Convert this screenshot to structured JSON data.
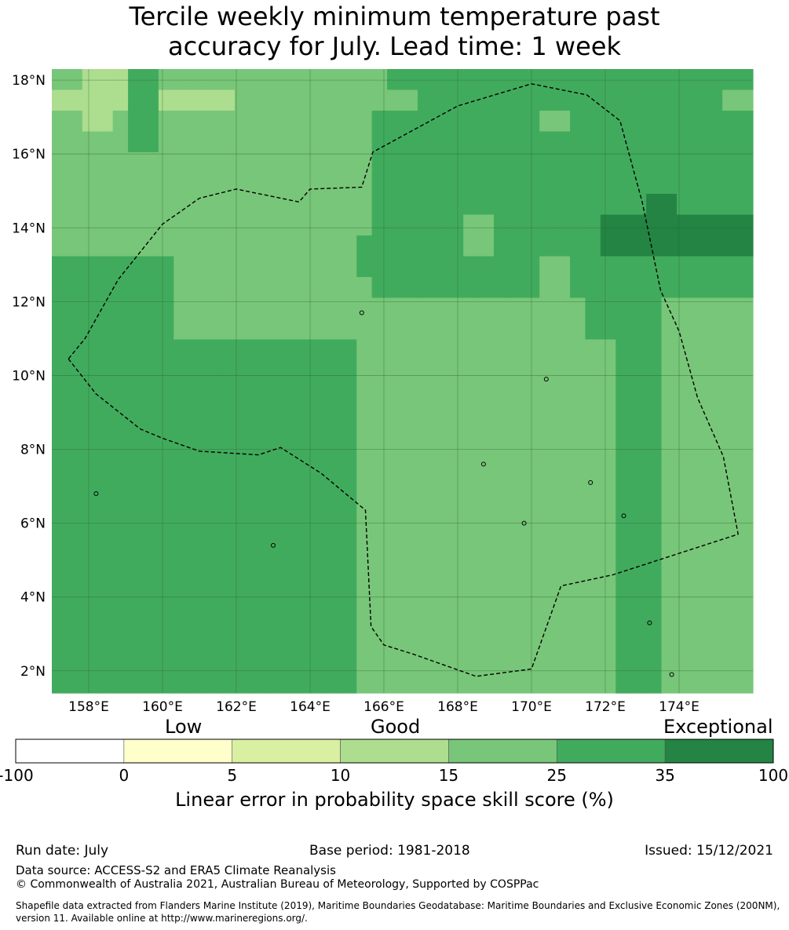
{
  "title_line1": "Tercile weekly minimum temperature past",
  "title_line2": "accuracy for July. Lead time: 1 week",
  "map": {
    "lon_range": [
      157.0,
      176.0
    ],
    "lat_range": [
      1.4,
      18.3
    ],
    "lat_ticks": [
      {
        "value": 2,
        "label": "2°N"
      },
      {
        "value": 4,
        "label": "4°N"
      },
      {
        "value": 6,
        "label": "6°N"
      },
      {
        "value": 8,
        "label": "8°N"
      },
      {
        "value": 10,
        "label": "10°N"
      },
      {
        "value": 12,
        "label": "12°N"
      },
      {
        "value": 14,
        "label": "14°N"
      },
      {
        "value": 16,
        "label": "16°N"
      },
      {
        "value": 18,
        "label": "18°N"
      }
    ],
    "lon_ticks": [
      {
        "value": 158,
        "label": "158°E"
      },
      {
        "value": 160,
        "label": "160°E"
      },
      {
        "value": 162,
        "label": "162°E"
      },
      {
        "value": 164,
        "label": "164°E"
      },
      {
        "value": 166,
        "label": "166°E"
      },
      {
        "value": 168,
        "label": "168°E"
      },
      {
        "value": 170,
        "label": "170°E"
      },
      {
        "value": 172,
        "label": "172°E"
      },
      {
        "value": 174,
        "label": "174°E"
      }
    ],
    "grid_lines": true,
    "eez_boundary_lonlat": [
      [
        157.45,
        10.45
      ],
      [
        158.2,
        9.5
      ],
      [
        159.4,
        8.55
      ],
      [
        160.0,
        8.3
      ],
      [
        161.0,
        7.95
      ],
      [
        162.6,
        7.85
      ],
      [
        163.2,
        8.05
      ],
      [
        164.3,
        7.35
      ],
      [
        165.5,
        6.35
      ],
      [
        165.65,
        3.2
      ],
      [
        166.0,
        2.7
      ],
      [
        166.8,
        2.45
      ],
      [
        168.5,
        1.85
      ],
      [
        170.0,
        2.05
      ],
      [
        170.8,
        4.3
      ],
      [
        172.2,
        4.6
      ],
      [
        175.6,
        5.7
      ],
      [
        175.2,
        7.8
      ],
      [
        174.5,
        9.4
      ],
      [
        174.0,
        11.2
      ],
      [
        173.5,
        12.3
      ],
      [
        173.0,
        14.7
      ],
      [
        172.4,
        16.9
      ],
      [
        171.5,
        17.6
      ],
      [
        170.0,
        17.9
      ],
      [
        168.0,
        17.3
      ],
      [
        165.7,
        16.05
      ],
      [
        165.4,
        15.1
      ],
      [
        164.0,
        15.05
      ],
      [
        163.7,
        14.7
      ],
      [
        162.0,
        15.05
      ],
      [
        161.0,
        14.8
      ],
      [
        160.0,
        14.1
      ],
      [
        158.8,
        12.6
      ],
      [
        157.9,
        11.0
      ],
      [
        157.45,
        10.45
      ]
    ],
    "skill_grid_lat_from_north": [
      [
        4,
        4,
        3,
        3,
        3,
        5,
        5,
        4,
        4,
        4,
        4,
        4,
        4,
        4,
        4,
        4,
        4,
        4,
        4,
        4,
        4,
        4,
        5,
        5,
        5,
        5,
        5,
        5,
        5,
        5,
        5,
        5,
        5,
        5,
        5,
        5,
        5,
        5,
        5,
        5,
        5,
        5,
        5,
        5,
        5,
        5
      ],
      [
        3,
        3,
        3,
        3,
        3,
        5,
        5,
        3,
        3,
        3,
        3,
        3,
        4,
        4,
        4,
        4,
        4,
        4,
        4,
        4,
        4,
        4,
        4,
        4,
        5,
        5,
        5,
        5,
        5,
        5,
        5,
        5,
        5,
        5,
        5,
        5,
        5,
        5,
        5,
        5,
        5,
        5,
        5,
        5,
        4,
        4
      ],
      [
        4,
        4,
        3,
        3,
        4,
        5,
        5,
        4,
        4,
        4,
        4,
        4,
        4,
        4,
        4,
        4,
        4,
        4,
        4,
        4,
        4,
        5,
        5,
        5,
        5,
        5,
        5,
        5,
        5,
        5,
        5,
        5,
        4,
        4,
        5,
        5,
        5,
        5,
        5,
        5,
        5,
        5,
        5,
        5,
        5,
        5
      ],
      [
        4,
        4,
        4,
        4,
        4,
        5,
        5,
        4,
        4,
        4,
        4,
        4,
        4,
        4,
        4,
        4,
        4,
        4,
        4,
        4,
        4,
        5,
        5,
        5,
        5,
        5,
        5,
        5,
        5,
        5,
        5,
        5,
        5,
        5,
        5,
        5,
        5,
        5,
        5,
        5,
        5,
        5,
        5,
        5,
        5,
        5
      ],
      [
        4,
        4,
        4,
        4,
        4,
        4,
        4,
        4,
        4,
        4,
        4,
        4,
        4,
        4,
        4,
        4,
        4,
        4,
        4,
        4,
        4,
        5,
        5,
        5,
        5,
        5,
        5,
        5,
        5,
        5,
        5,
        5,
        5,
        5,
        5,
        5,
        5,
        5,
        5,
        5,
        5,
        5,
        5,
        5,
        5,
        5
      ],
      [
        4,
        4,
        4,
        4,
        4,
        4,
        4,
        4,
        4,
        4,
        4,
        4,
        4,
        4,
        4,
        4,
        4,
        4,
        4,
        4,
        4,
        5,
        5,
        5,
        5,
        5,
        5,
        5,
        5,
        5,
        5,
        5,
        5,
        5,
        5,
        5,
        5,
        5,
        5,
        5,
        5,
        5,
        5,
        5,
        5,
        5
      ],
      [
        4,
        4,
        4,
        4,
        4,
        4,
        4,
        4,
        4,
        4,
        4,
        4,
        4,
        4,
        4,
        4,
        4,
        4,
        4,
        4,
        4,
        5,
        5,
        5,
        5,
        5,
        5,
        5,
        5,
        5,
        5,
        5,
        5,
        5,
        5,
        5,
        5,
        5,
        5,
        6,
        6,
        5,
        5,
        5,
        5,
        5
      ],
      [
        4,
        4,
        4,
        4,
        4,
        4,
        4,
        4,
        4,
        4,
        4,
        4,
        4,
        4,
        4,
        4,
        4,
        4,
        4,
        4,
        4,
        5,
        5,
        5,
        5,
        5,
        5,
        4,
        4,
        5,
        5,
        5,
        5,
        5,
        5,
        5,
        6,
        6,
        6,
        6,
        6,
        6,
        6,
        6,
        6,
        6
      ],
      [
        4,
        4,
        4,
        4,
        4,
        4,
        4,
        4,
        4,
        4,
        4,
        4,
        4,
        4,
        4,
        4,
        4,
        4,
        4,
        4,
        5,
        5,
        5,
        5,
        5,
        5,
        5,
        4,
        4,
        5,
        5,
        5,
        5,
        5,
        5,
        5,
        6,
        6,
        6,
        6,
        6,
        6,
        6,
        6,
        6,
        6
      ],
      [
        5,
        5,
        5,
        5,
        5,
        5,
        5,
        5,
        4,
        4,
        4,
        4,
        4,
        4,
        4,
        4,
        4,
        4,
        4,
        4,
        5,
        5,
        5,
        5,
        5,
        5,
        5,
        5,
        5,
        5,
        5,
        5,
        4,
        4,
        5,
        5,
        5,
        5,
        5,
        5,
        5,
        5,
        5,
        5,
        5,
        5
      ],
      [
        5,
        5,
        5,
        5,
        5,
        5,
        5,
        5,
        4,
        4,
        4,
        4,
        4,
        4,
        4,
        4,
        4,
        4,
        4,
        4,
        4,
        5,
        5,
        5,
        5,
        5,
        5,
        5,
        5,
        5,
        5,
        5,
        4,
        4,
        5,
        5,
        5,
        5,
        5,
        5,
        5,
        5,
        5,
        5,
        5,
        5
      ],
      [
        5,
        5,
        5,
        5,
        5,
        5,
        5,
        5,
        4,
        4,
        4,
        4,
        4,
        4,
        4,
        4,
        4,
        4,
        4,
        4,
        4,
        4,
        4,
        4,
        4,
        4,
        4,
        4,
        4,
        4,
        4,
        4,
        4,
        4,
        4,
        5,
        5,
        5,
        5,
        5,
        4,
        4,
        4,
        4,
        4,
        4
      ],
      [
        5,
        5,
        5,
        5,
        5,
        5,
        5,
        5,
        4,
        4,
        4,
        4,
        4,
        4,
        4,
        4,
        4,
        4,
        4,
        4,
        4,
        4,
        4,
        4,
        4,
        4,
        4,
        4,
        4,
        4,
        4,
        4,
        4,
        4,
        4,
        5,
        5,
        5,
        5,
        5,
        4,
        4,
        4,
        4,
        4,
        4
      ],
      [
        5,
        5,
        5,
        5,
        5,
        5,
        5,
        5,
        5,
        5,
        5,
        5,
        5,
        5,
        5,
        5,
        5,
        5,
        5,
        5,
        4,
        4,
        4,
        4,
        4,
        4,
        4,
        4,
        4,
        4,
        4,
        4,
        4,
        4,
        4,
        4,
        4,
        5,
        5,
        5,
        4,
        4,
        4,
        4,
        4,
        4
      ],
      [
        5,
        5,
        5,
        5,
        5,
        5,
        5,
        5,
        5,
        5,
        5,
        5,
        5,
        5,
        5,
        5,
        5,
        5,
        5,
        5,
        4,
        4,
        4,
        4,
        4,
        4,
        4,
        4,
        4,
        4,
        4,
        4,
        4,
        4,
        4,
        4,
        4,
        5,
        5,
        5,
        4,
        4,
        4,
        4,
        4,
        4
      ],
      [
        5,
        5,
        5,
        5,
        5,
        5,
        5,
        5,
        5,
        5,
        5,
        5,
        5,
        5,
        5,
        5,
        5,
        5,
        5,
        5,
        4,
        4,
        4,
        4,
        4,
        4,
        4,
        4,
        4,
        4,
        4,
        4,
        4,
        4,
        4,
        4,
        4,
        5,
        5,
        5,
        4,
        4,
        4,
        4,
        4,
        4
      ],
      [
        5,
        5,
        5,
        5,
        5,
        5,
        5,
        5,
        5,
        5,
        5,
        5,
        5,
        5,
        5,
        5,
        5,
        5,
        5,
        5,
        4,
        4,
        4,
        4,
        4,
        4,
        4,
        4,
        4,
        4,
        4,
        4,
        4,
        4,
        4,
        4,
        4,
        5,
        5,
        5,
        4,
        4,
        4,
        4,
        4,
        4
      ],
      [
        5,
        5,
        5,
        5,
        5,
        5,
        5,
        5,
        5,
        5,
        5,
        5,
        5,
        5,
        5,
        5,
        5,
        5,
        5,
        5,
        4,
        4,
        4,
        4,
        4,
        4,
        4,
        4,
        4,
        4,
        4,
        4,
        4,
        4,
        4,
        4,
        4,
        5,
        5,
        5,
        4,
        4,
        4,
        4,
        4,
        4
      ],
      [
        5,
        5,
        5,
        5,
        5,
        5,
        5,
        5,
        5,
        5,
        5,
        5,
        5,
        5,
        5,
        5,
        5,
        5,
        5,
        5,
        4,
        4,
        4,
        4,
        4,
        4,
        4,
        4,
        4,
        4,
        4,
        4,
        4,
        4,
        4,
        4,
        4,
        5,
        5,
        5,
        4,
        4,
        4,
        4,
        4,
        4
      ],
      [
        5,
        5,
        5,
        5,
        5,
        5,
        5,
        5,
        5,
        5,
        5,
        5,
        5,
        5,
        5,
        5,
        5,
        5,
        5,
        5,
        4,
        4,
        4,
        4,
        4,
        4,
        4,
        4,
        4,
        4,
        4,
        4,
        4,
        4,
        4,
        4,
        4,
        5,
        5,
        5,
        4,
        4,
        4,
        4,
        4,
        4
      ],
      [
        5,
        5,
        5,
        5,
        5,
        5,
        5,
        5,
        5,
        5,
        5,
        5,
        5,
        5,
        5,
        5,
        5,
        5,
        5,
        5,
        4,
        4,
        4,
        4,
        4,
        4,
        4,
        4,
        4,
        4,
        4,
        4,
        4,
        4,
        4,
        4,
        4,
        5,
        5,
        5,
        4,
        4,
        4,
        4,
        4,
        4
      ],
      [
        5,
        5,
        5,
        5,
        5,
        5,
        5,
        5,
        5,
        5,
        5,
        5,
        5,
        5,
        5,
        5,
        5,
        5,
        5,
        5,
        4,
        4,
        4,
        4,
        4,
        4,
        4,
        4,
        4,
        4,
        4,
        4,
        4,
        4,
        4,
        4,
        4,
        5,
        5,
        5,
        4,
        4,
        4,
        4,
        4,
        4
      ],
      [
        5,
        5,
        5,
        5,
        5,
        5,
        5,
        5,
        5,
        5,
        5,
        5,
        5,
        5,
        5,
        5,
        5,
        5,
        5,
        5,
        4,
        4,
        4,
        4,
        4,
        4,
        4,
        4,
        4,
        4,
        4,
        4,
        4,
        4,
        4,
        4,
        4,
        5,
        5,
        5,
        4,
        4,
        4,
        4,
        4,
        4
      ],
      [
        5,
        5,
        5,
        5,
        5,
        5,
        5,
        5,
        5,
        5,
        5,
        5,
        5,
        5,
        5,
        5,
        5,
        5,
        5,
        5,
        4,
        4,
        4,
        4,
        4,
        4,
        4,
        4,
        4,
        4,
        4,
        4,
        4,
        4,
        4,
        4,
        4,
        5,
        5,
        5,
        4,
        4,
        4,
        4,
        4,
        4
      ],
      [
        5,
        5,
        5,
        5,
        5,
        5,
        5,
        5,
        5,
        5,
        5,
        5,
        5,
        5,
        5,
        5,
        5,
        5,
        5,
        5,
        4,
        4,
        4,
        4,
        4,
        4,
        4,
        4,
        4,
        4,
        4,
        4,
        4,
        4,
        4,
        4,
        4,
        5,
        5,
        5,
        4,
        4,
        4,
        4,
        4,
        4
      ],
      [
        5,
        5,
        5,
        5,
        5,
        5,
        5,
        5,
        5,
        5,
        5,
        5,
        5,
        5,
        5,
        5,
        5,
        5,
        5,
        5,
        4,
        4,
        4,
        4,
        4,
        4,
        4,
        4,
        4,
        4,
        4,
        4,
        4,
        4,
        4,
        4,
        4,
        5,
        5,
        5,
        4,
        4,
        4,
        4,
        4,
        4
      ],
      [
        5,
        5,
        5,
        5,
        5,
        5,
        5,
        5,
        5,
        5,
        5,
        5,
        5,
        5,
        5,
        5,
        5,
        5,
        5,
        5,
        4,
        4,
        4,
        4,
        4,
        4,
        4,
        4,
        4,
        4,
        4,
        4,
        4,
        4,
        4,
        4,
        4,
        5,
        5,
        5,
        4,
        4,
        4,
        4,
        4,
        4
      ],
      [
        5,
        5,
        5,
        5,
        5,
        5,
        5,
        5,
        5,
        5,
        5,
        5,
        5,
        5,
        5,
        5,
        5,
        5,
        5,
        5,
        4,
        4,
        4,
        4,
        4,
        4,
        4,
        4,
        4,
        4,
        4,
        4,
        4,
        4,
        4,
        4,
        4,
        5,
        5,
        5,
        4,
        4,
        4,
        4,
        4,
        4
      ],
      [
        5,
        5,
        5,
        5,
        5,
        5,
        5,
        5,
        5,
        5,
        5,
        5,
        5,
        5,
        5,
        5,
        5,
        5,
        5,
        5,
        4,
        4,
        4,
        4,
        4,
        4,
        4,
        4,
        4,
        4,
        4,
        4,
        4,
        4,
        4,
        4,
        4,
        5,
        5,
        5,
        4,
        4,
        4,
        4,
        4,
        4
      ],
      [
        5,
        5,
        5,
        5,
        5,
        5,
        5,
        5,
        5,
        5,
        5,
        5,
        5,
        5,
        5,
        5,
        5,
        5,
        5,
        5,
        4,
        4,
        4,
        4,
        4,
        4,
        4,
        4,
        4,
        4,
        4,
        4,
        4,
        4,
        4,
        4,
        4,
        5,
        5,
        5,
        4,
        4,
        4,
        4,
        4,
        4
      ]
    ]
  },
  "colorbar": {
    "category_labels": {
      "low": "Low",
      "good": "Good",
      "exceptional": "Exceptional"
    },
    "colors": [
      "#ffffff",
      "#ffffcc",
      "#d9f0a3",
      "#addd8e",
      "#78c679",
      "#41ab5d",
      "#238443"
    ],
    "ticks": [
      "-100",
      "0",
      "5",
      "10",
      "15",
      "25",
      "35",
      "100"
    ],
    "label": "Linear error in probability space skill score (%)"
  },
  "footer": {
    "run_date": "Run date: July",
    "base_period": "Base period: 1981-2018",
    "issued": "Issued: 15/12/2021",
    "data_source": "Data source: ACCESS-S2 and ERA5 Climate Reanalysis",
    "copyright": "© Commonwealth of Australia 2021, Australian Bureau of Meteorology, Supported by COSPPac",
    "shapefile_line1": "Shapefile data extracted from Flanders Marine Institute (2019), Maritime Boundaries Geodatabase: Maritime Boundaries and Exclusive Economic Zones (200NM),",
    "shapefile_line2": "version 11. Available online at http://www.marineregions.org/."
  }
}
